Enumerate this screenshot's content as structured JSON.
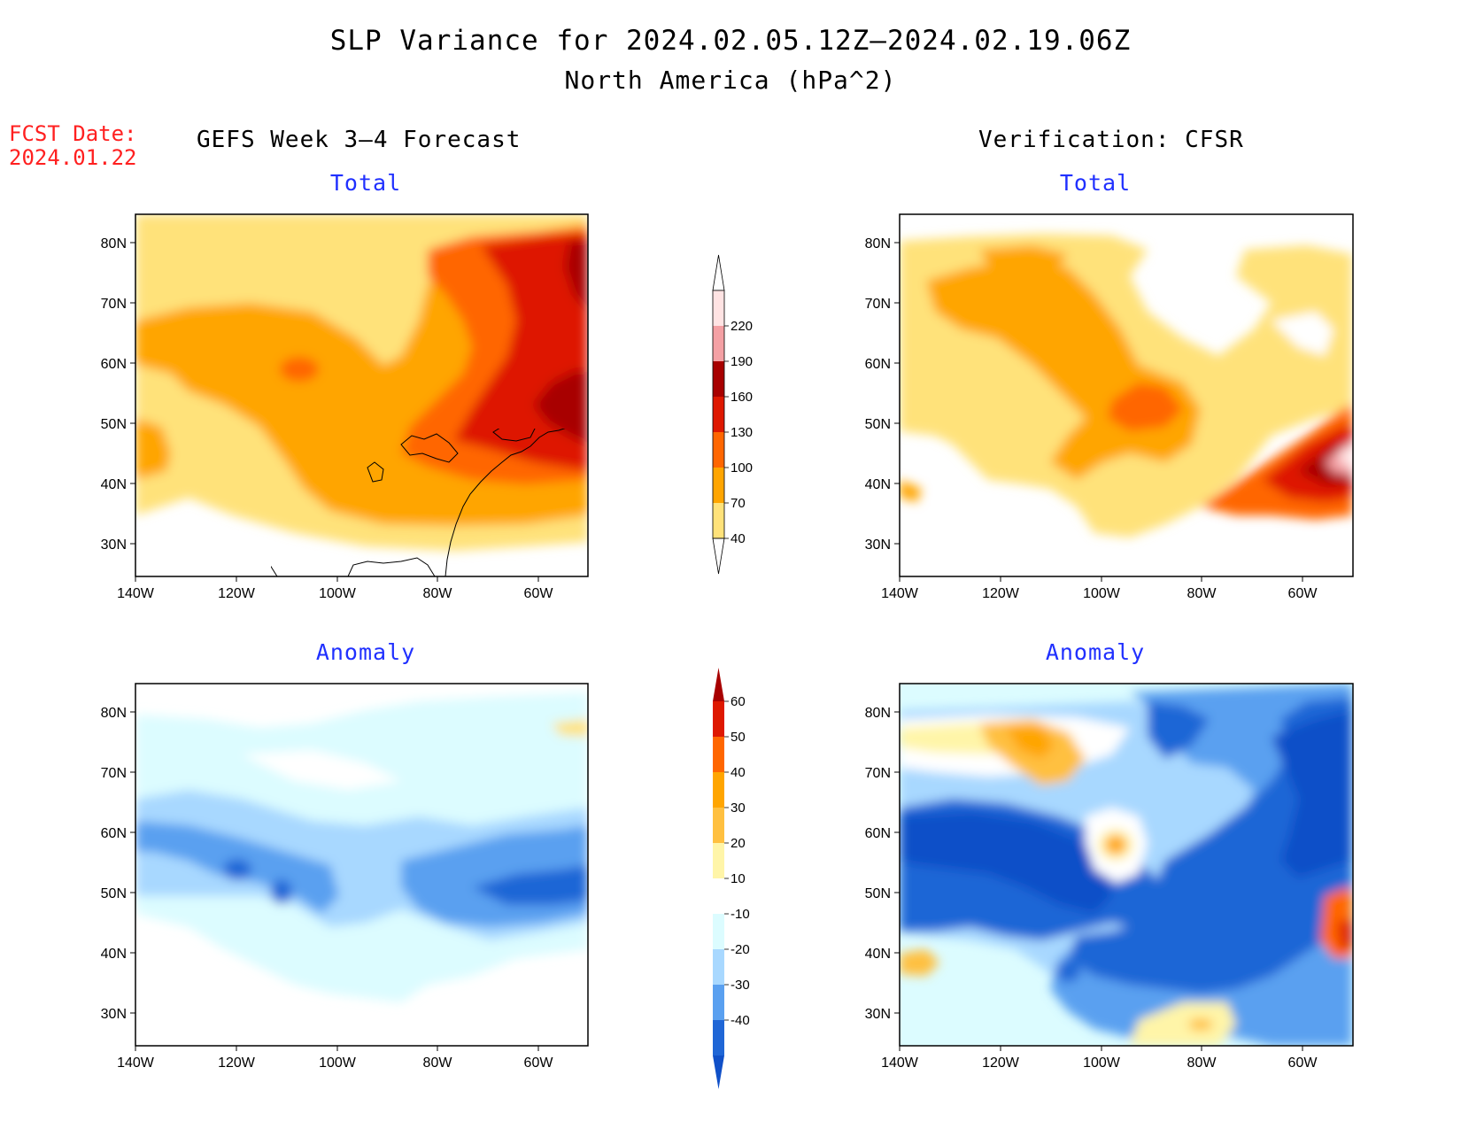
{
  "title": {
    "line1": "SLP Variance for 2024.02.05.12Z–2024.02.19.06Z",
    "line2": "North America (hPa^2)"
  },
  "fcst": {
    "label": "FCST Date:",
    "date": "2024.01.22"
  },
  "columns": {
    "left": "GEFS Week 3–4 Forecast",
    "right": "Verification: CFSR"
  },
  "panels": {
    "tl": {
      "subtitle": "Total"
    },
    "tr": {
      "subtitle": "Total"
    },
    "bl": {
      "subtitle": "Anomaly"
    },
    "br": {
      "subtitle": "Anomaly"
    }
  },
  "axes": {
    "lat_labels": [
      "80N",
      "70N",
      "60N",
      "50N",
      "40N",
      "30N"
    ],
    "lon_labels": [
      "140W",
      "120W",
      "100W",
      "80W",
      "60W"
    ]
  },
  "total_colorbar": {
    "levels": [
      "220",
      "190",
      "160",
      "130",
      "100",
      "70",
      "40"
    ],
    "colors": [
      "#ffe3e3",
      "#f4a0a4",
      "#a80000",
      "#de1800",
      "#ff6600",
      "#ffa500",
      "#ffe27a"
    ]
  },
  "anomaly_colorbar": {
    "levels": [
      "60",
      "50",
      "40",
      "30",
      "20",
      "10",
      "-10",
      "-20",
      "-30",
      "-40"
    ],
    "colors": [
      "#a80000",
      "#de1800",
      "#ff6600",
      "#ffa500",
      "#ffc040",
      "#fff5a8",
      "#ffffff",
      "#dcfcff",
      "#a8d8ff",
      "#5aa0f0",
      "#1f66d6",
      "#1050c8"
    ]
  }
}
